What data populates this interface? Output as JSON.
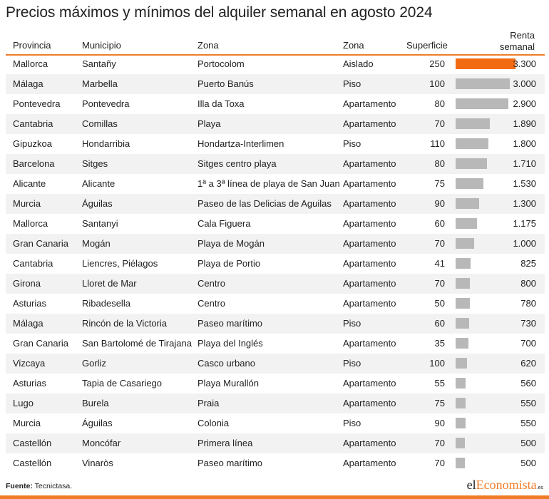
{
  "title": "Precios máximos y mínimos del alquiler semanal en agosto 2024",
  "chart_data": {
    "type": "table",
    "columns": [
      "Provincia",
      "Municipio",
      "Zona",
      "Zona",
      "Superficie",
      "Renta semanal"
    ],
    "rows": [
      {
        "provincia": "Mallorca",
        "municipio": "Santañy",
        "zona": "Portocolom",
        "tipo": "Aislado",
        "superficie": "250",
        "renta": "3.300",
        "value": 3300
      },
      {
        "provincia": "Málaga",
        "municipio": "Marbella",
        "zona": "Puerto Banús",
        "tipo": "Piso",
        "superficie": "100",
        "renta": "3.000",
        "value": 3000
      },
      {
        "provincia": "Pontevedra",
        "municipio": "Pontevedra",
        "zona": "Illa da Toxa",
        "tipo": "Apartamento",
        "superficie": "80",
        "renta": "2.900",
        "value": 2900
      },
      {
        "provincia": "Cantabria",
        "municipio": "Comillas",
        "zona": "Playa",
        "tipo": "Apartamento",
        "superficie": "70",
        "renta": "1.890",
        "value": 1890
      },
      {
        "provincia": "Gipuzkoa",
        "municipio": "Hondarribia",
        "zona": "Hondartza-Interlimen",
        "tipo": "Piso",
        "superficie": "110",
        "renta": "1.800",
        "value": 1800
      },
      {
        "provincia": "Barcelona",
        "municipio": "Sitges",
        "zona": "Sitges centro playa",
        "tipo": "Apartamento",
        "superficie": "80",
        "renta": "1.710",
        "value": 1710
      },
      {
        "provincia": "Alicante",
        "municipio": "Alicante",
        "zona": "1ª a 3ª línea de playa de San Juan",
        "tipo": "Apartamento",
        "superficie": "75",
        "renta": "1.530",
        "value": 1530
      },
      {
        "provincia": "Murcia",
        "municipio": "Águilas",
        "zona": "Paseo de las Delicias de Aguilas",
        "tipo": "Apartamento",
        "superficie": "90",
        "renta": "1.300",
        "value": 1300
      },
      {
        "provincia": "Mallorca",
        "municipio": "Santanyi",
        "zona": "Cala Figuera",
        "tipo": "Apartamento",
        "superficie": "60",
        "renta": "1.175",
        "value": 1175
      },
      {
        "provincia": "Gran Canaria",
        "municipio": "Mogán",
        "zona": "Playa de Mogán",
        "tipo": "Apartamento",
        "superficie": "70",
        "renta": "1.000",
        "value": 1000
      },
      {
        "provincia": "Cantabria",
        "municipio": "Liencres, Piélagos",
        "zona": "Playa de Portio",
        "tipo": "Apartamento",
        "superficie": "41",
        "renta": "825",
        "value": 825
      },
      {
        "provincia": "Girona",
        "municipio": "Lloret de Mar",
        "zona": "Centro",
        "tipo": "Apartamento",
        "superficie": "70",
        "renta": "800",
        "value": 800
      },
      {
        "provincia": "Asturias",
        "municipio": "Ribadesella",
        "zona": "Centro",
        "tipo": "Apartamento",
        "superficie": "50",
        "renta": "780",
        "value": 780
      },
      {
        "provincia": "Málaga",
        "municipio": "Rincón de la Victoria",
        "zona": "Paseo marítimo",
        "tipo": "Piso",
        "superficie": "60",
        "renta": "730",
        "value": 730
      },
      {
        "provincia": "Gran Canaria",
        "municipio": "San Bartolomé de Tirajana",
        "zona": "Playa del Inglés",
        "tipo": "Apartamento",
        "superficie": "35",
        "renta": "700",
        "value": 700
      },
      {
        "provincia": "Vizcaya",
        "municipio": "Gorliz",
        "zona": "Casco urbano",
        "tipo": "Piso",
        "superficie": "100",
        "renta": "620",
        "value": 620
      },
      {
        "provincia": "Asturias",
        "municipio": "Tapia de Casariego",
        "zona": "Playa Murallón",
        "tipo": "Apartamento",
        "superficie": "55",
        "renta": "560",
        "value": 560
      },
      {
        "provincia": "Lugo",
        "municipio": "Burela",
        "zona": "Praia",
        "tipo": "Apartamento",
        "superficie": "75",
        "renta": "550",
        "value": 550
      },
      {
        "provincia": "Murcia",
        "municipio": "Águilas",
        "zona": "Colonia",
        "tipo": "Piso",
        "superficie": "90",
        "renta": "550",
        "value": 550
      },
      {
        "provincia": "Castellón",
        "municipio": "Moncófar",
        "zona": "Primera línea",
        "tipo": "Apartamento",
        "superficie": "70",
        "renta": "500",
        "value": 500
      },
      {
        "provincia": "Castellón",
        "municipio": "Vinaròs",
        "zona": "Paseo marítimo",
        "tipo": "Apartamento",
        "superficie": "70",
        "renta": "500",
        "value": 500
      }
    ]
  },
  "header": {
    "provincia": "Provincia",
    "municipio": "Municipio",
    "zona1": "Zona",
    "zona2": "Zona",
    "superficie": "Superficie",
    "renta_line1": "Renta",
    "renta_line2": "semanal"
  },
  "footer": {
    "label": "Fuente:",
    "source": "Tecnictasa."
  },
  "logo": {
    "part1": "el",
    "part2": "Economista",
    "part3": ".es"
  },
  "colors": {
    "accent": "#f07c28",
    "highlight_bar": "#f26b12",
    "bar": "#b8b8b8",
    "zebra": "#f2f2f2"
  }
}
